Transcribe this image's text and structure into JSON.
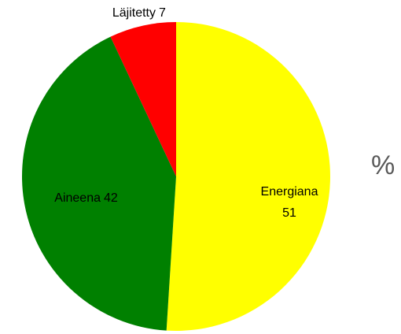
{
  "chart_data": {
    "type": "pie",
    "categories": [
      "Energiana",
      "Aineena",
      "Läjitetty"
    ],
    "values": [
      51,
      42,
      7
    ],
    "colors": [
      "#ffff00",
      "#008000",
      "#ff0000"
    ],
    "unit_label": "%"
  }
}
